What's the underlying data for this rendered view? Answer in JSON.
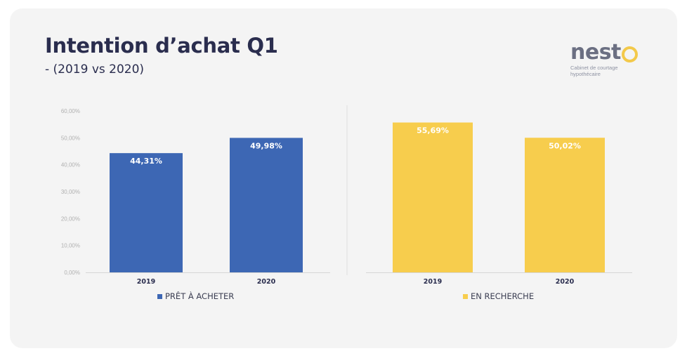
{
  "header": {
    "title": "Intention d’achat Q1",
    "subtitle": "- (2019 vs 2020)"
  },
  "logo": {
    "word": "nest",
    "tagline": "Cabinet de courtage hypothécaire"
  },
  "colors": {
    "blue": "#3d67b4",
    "yellow": "#f7cd4d",
    "title": "#2a2d4e"
  },
  "chart_data": [
    {
      "type": "bar",
      "categories": [
        "2019",
        "2020"
      ],
      "series": [
        {
          "name": "PRÊT À ACHETER",
          "values": [
            44.31,
            49.98
          ]
        }
      ],
      "data_labels": [
        "44,31%",
        "49,98%"
      ],
      "yticks": [
        "0,00%",
        "10,00%",
        "20,00%",
        "30,00%",
        "40,00%",
        "50,00%",
        "60,00%"
      ],
      "ylim": [
        0,
        60
      ],
      "grid": false,
      "legend": "bottom",
      "color": "#3d67b4"
    },
    {
      "type": "bar",
      "categories": [
        "2019",
        "2020"
      ],
      "series": [
        {
          "name": "EN RECHERCHE",
          "values": [
            55.69,
            50.02
          ]
        }
      ],
      "data_labels": [
        "55,69%",
        "50,02%"
      ],
      "ylim": [
        0,
        60
      ],
      "grid": false,
      "legend": "bottom",
      "color": "#f7cd4d"
    }
  ]
}
